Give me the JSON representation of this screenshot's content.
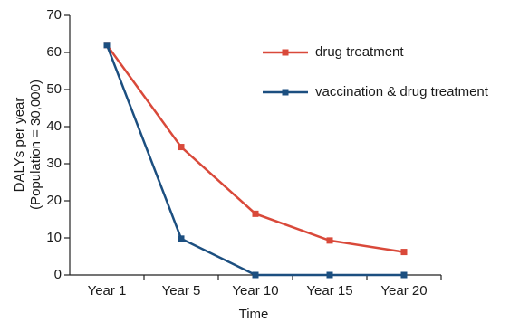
{
  "chart_data": {
    "type": "line",
    "x_label": "Time",
    "y_label": [
      "DALYs per year",
      "(Population = 30,000)"
    ],
    "categories": [
      "Year 1",
      "Year 5",
      "Year 10",
      "Year 15",
      "Year 20"
    ],
    "series": [
      {
        "name": "drug treatment",
        "color": "#d9493a",
        "values": [
          62,
          34.5,
          16.5,
          9.3,
          6.2
        ]
      },
      {
        "name": "vaccination & drug treatment",
        "color": "#1c4f80",
        "values": [
          62,
          9.8,
          0,
          0,
          0
        ]
      }
    ],
    "ylim": [
      0,
      70
    ],
    "yticks": [
      0,
      10,
      20,
      30,
      40,
      50,
      60,
      70
    ],
    "grid": false
  }
}
